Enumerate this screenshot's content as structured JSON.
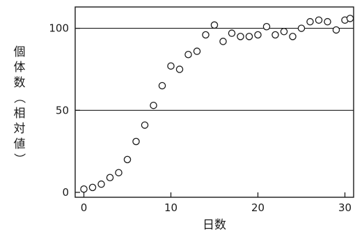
{
  "chart_data": {
    "type": "scatter",
    "title": "",
    "xlabel": "日数",
    "ylabel": [
      "個",
      "体",
      "数",
      "（",
      "相",
      "対",
      "値",
      "）"
    ],
    "xlim": [
      -1,
      31
    ],
    "ylim": [
      -3,
      113
    ],
    "x_ticks": [
      0,
      10,
      20,
      30
    ],
    "x_tick_labels": [
      "0",
      "10",
      "20",
      "30"
    ],
    "y_ticks": [
      0,
      50,
      100
    ],
    "y_tick_labels": [
      "0",
      "50",
      "100"
    ],
    "reference_lines_y": [
      50,
      100
    ],
    "marker": "open-circle",
    "x": [
      0,
      1,
      2,
      3,
      4,
      5,
      6,
      7,
      8,
      9,
      10,
      11,
      12,
      13,
      14,
      15,
      16,
      17,
      18,
      19,
      20,
      21,
      22,
      23,
      24,
      25,
      26,
      27,
      28,
      29,
      30,
      31
    ],
    "y": [
      2,
      3,
      5,
      9,
      12,
      20,
      31,
      41,
      53,
      65,
      77,
      75,
      84,
      86,
      96,
      102,
      92,
      97,
      95,
      95,
      96,
      101,
      96,
      98,
      95,
      100,
      104,
      105,
      104,
      99,
      105,
      106
    ]
  }
}
